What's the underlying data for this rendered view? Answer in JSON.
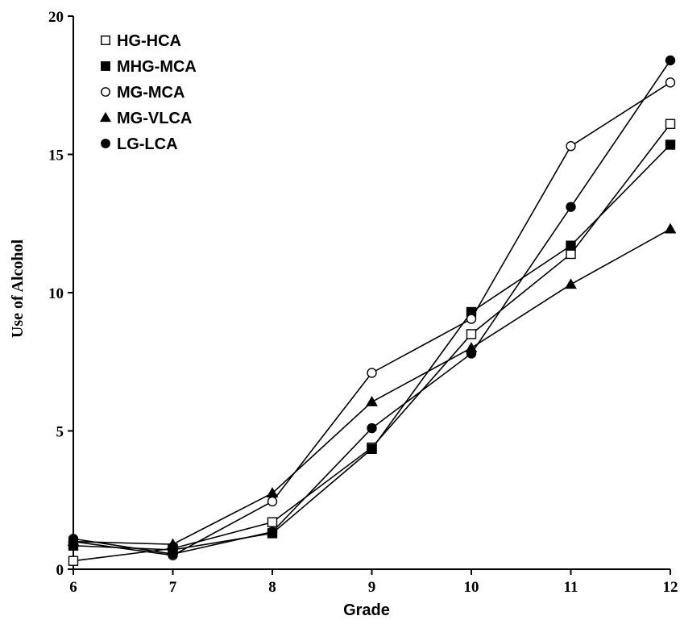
{
  "chart_data": {
    "type": "line",
    "title": "",
    "xlabel": "Grade",
    "ylabel": "Use of Alcohol",
    "x": [
      6,
      7,
      8,
      9,
      10,
      11,
      12
    ],
    "xlim": [
      6,
      12
    ],
    "ylim": [
      0,
      20
    ],
    "x_ticks": [
      "6",
      "7",
      "8",
      "9",
      "10",
      "11",
      "12"
    ],
    "y_ticks": [
      "0",
      "5",
      "10",
      "15",
      "20"
    ],
    "grid": false,
    "legend_position": "top-left",
    "series": [
      {
        "name": "HG-HCA",
        "marker": "square-open",
        "values": [
          0.3,
          0.75,
          1.7,
          4.4,
          8.5,
          11.4,
          16.1
        ]
      },
      {
        "name": "MHG-MCA",
        "marker": "square-filled",
        "values": [
          0.85,
          0.7,
          1.3,
          4.35,
          9.3,
          11.7,
          15.35
        ]
      },
      {
        "name": "MG-MCA",
        "marker": "circle-open",
        "values": [
          1.0,
          0.5,
          2.45,
          7.1,
          9.05,
          15.3,
          17.6
        ]
      },
      {
        "name": "MG-VLCA",
        "marker": "triangle-filled",
        "values": [
          1.0,
          0.9,
          2.75,
          6.05,
          8.0,
          10.3,
          12.3
        ]
      },
      {
        "name": "LG-LCA",
        "marker": "circle-filled",
        "values": [
          1.1,
          0.55,
          1.35,
          5.1,
          7.8,
          13.1,
          18.4
        ]
      }
    ]
  }
}
